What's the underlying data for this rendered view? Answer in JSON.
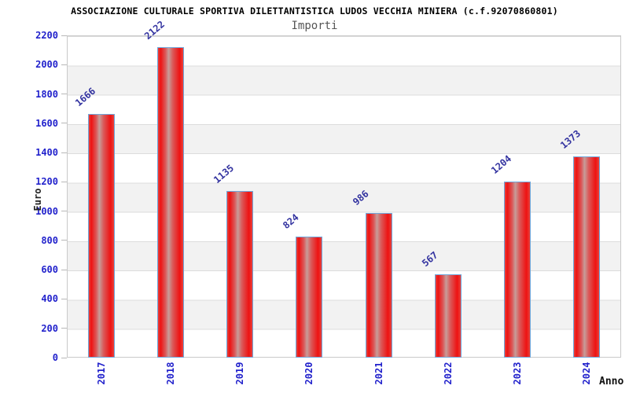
{
  "chart_data": {
    "type": "bar",
    "title": "ASSOCIAZIONE CULTURALE SPORTIVA DILETTANTISTICA LUDOS VECCHIA MINIERA (c.f.92070860801)",
    "subtitle": "Importi",
    "xlabel": "Anno",
    "ylabel": "Euro",
    "categories": [
      "2017",
      "2018",
      "2019",
      "2020",
      "2021",
      "2022",
      "2023",
      "2024"
    ],
    "series": [
      {
        "name": "Importi",
        "values": [
          1666,
          2122,
          1135,
          824,
          986,
          567,
          1204,
          1373
        ]
      }
    ],
    "ylim": [
      0,
      2200
    ],
    "ytick_step": 200,
    "yticks": [
      0,
      200,
      400,
      600,
      800,
      1000,
      1200,
      1400,
      1600,
      1800,
      2000,
      2200
    ],
    "grid": "horizontal gridlines every 200 with alternating gray bands",
    "legend": "none",
    "value_labels": "above bars, rotated 40deg",
    "x_tick_labels_rotation": "vertical (90deg counterclockwise)",
    "colors": {
      "bar_fill": "#ee1212",
      "bar_highlight": "#c79d99",
      "bar_border": "#6fa8dc",
      "value_label": "#3333a0",
      "axis_tick_label": "#2222cc",
      "band": "#f2f2f2",
      "gridline": "#dcdcdc",
      "plot_border": "#c9c9c9",
      "title": "#000000",
      "subtitle": "#555555",
      "axis_title": "#222222"
    }
  }
}
